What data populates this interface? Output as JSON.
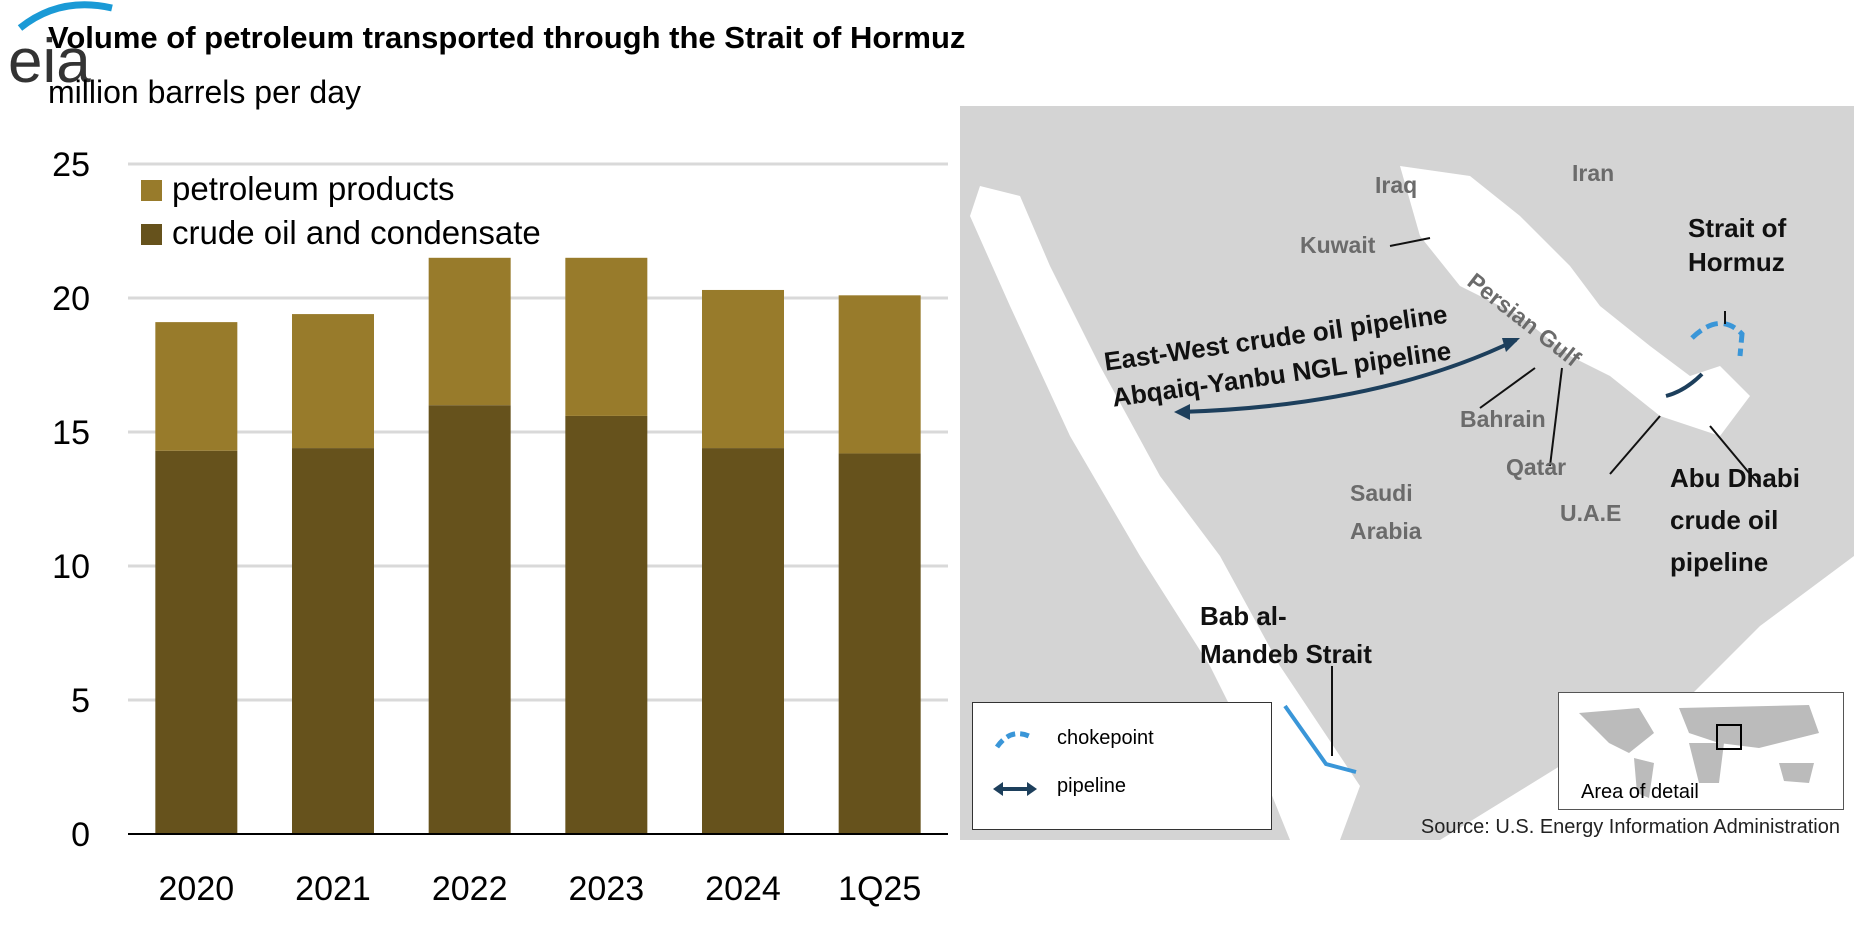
{
  "header": {
    "title": "Volume of petroleum transported through the Strait of Hormuz",
    "subtitle": "million barrels per day",
    "logo": "eia"
  },
  "chart_data": {
    "type": "bar",
    "stacked": true,
    "title": "Volume of petroleum transported through the Strait of Hormuz",
    "ylabel": "million barrels per day",
    "categories": [
      "2020",
      "2021",
      "2022",
      "2023",
      "2024",
      "1Q25"
    ],
    "series": [
      {
        "name": "crude oil and condensate",
        "color": "#66521c",
        "values": [
          14.3,
          14.4,
          16.0,
          15.6,
          14.4,
          14.2
        ]
      },
      {
        "name": "petroleum products",
        "color": "#987b2b",
        "values": [
          4.8,
          5.0,
          5.5,
          5.9,
          5.9,
          5.9
        ]
      }
    ],
    "ylim": [
      0,
      25
    ],
    "yticks": [
      0,
      5,
      10,
      15,
      20,
      25
    ],
    "grid": true,
    "legend": "top-left"
  },
  "map": {
    "labels": {
      "iraq": "Iraq",
      "iran": "Iran",
      "kuwait": "Kuwait",
      "gulf": "Persian Gulf",
      "bahrain": "Bahrain",
      "qatar": "Qatar",
      "saudi1": "Saudi",
      "saudi2": "Arabia",
      "uae": "U.A.E"
    },
    "callouts": {
      "hormuz1": "Strait of",
      "hormuz2": "Hormuz",
      "ew1": "East-West crude oil pipeline",
      "ew2": "Abqaiq-Yanbu NGL pipeline",
      "ad1": "Abu Dhabi",
      "ad2": "crude oil",
      "ad3": "pipeline",
      "bab1": "Bab al-",
      "bab2": "Mandeb Strait"
    },
    "legend": {
      "chokepoint": "chokepoint",
      "pipeline": "pipeline"
    },
    "inset_label": "Area of detail",
    "colors": {
      "chokepoint": "#3a96d8",
      "pipeline": "#1d3f5c"
    }
  },
  "source": "Source: U.S. Energy Information Administration"
}
